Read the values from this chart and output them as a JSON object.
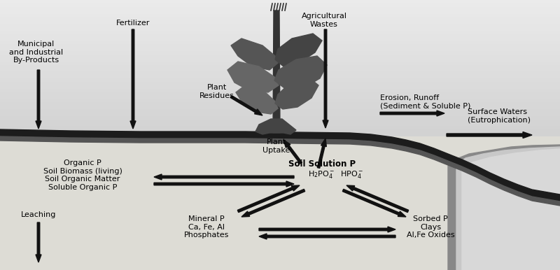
{
  "labels": {
    "fertilizer": "Fertilizer",
    "municipal": "Municipal\nand Industrial\nBy-Products",
    "plant_residues": "Plant\nResidues",
    "agricultural_wastes": "Agricultural\nWastes",
    "erosion_runoff": "Erosion, Runoff\n(Sediment & Soluble P)",
    "surface_waters": "Surface Waters\n(Eutrophication)",
    "organic_p": "Organic P\nSoil Biomass (living)\nSoil Organic Matter\nSoluble Organic P",
    "plant_uptake": "Plant\nUptake",
    "soil_solution_p": "Soil Solution P",
    "leaching": "Leaching",
    "mineral_p": "Mineral P\nCa, Fe, Al\nPhosphates",
    "sorbed_p": "Sorbed P\nClays\nAl,Fe Oxides"
  },
  "arrow_color": "#111111",
  "soil_color": "#1a1a1a",
  "below_ground_color": "#dddcd5",
  "water_color": "#b0b0b0",
  "water_light_color": "#cccccc"
}
